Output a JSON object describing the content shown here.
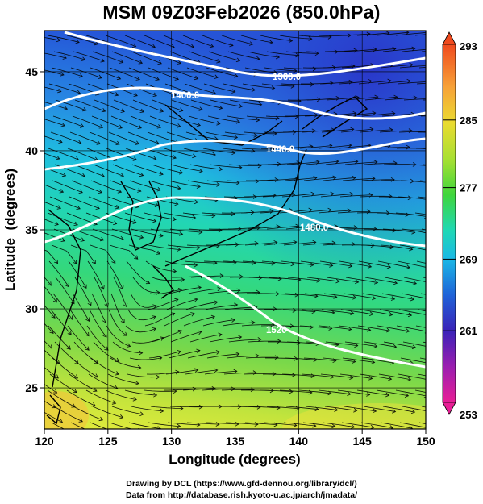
{
  "title": "MSM 09Z03Feb2026 (850.0hPa)",
  "x_axis": {
    "label": "Longitude (degrees)",
    "range": [
      120,
      150
    ],
    "ticks": [
      120,
      125,
      130,
      135,
      140,
      145,
      150
    ]
  },
  "y_axis": {
    "label": "Latitude  (degrees)",
    "range": [
      22.4,
      47.6
    ],
    "ticks": [
      25,
      30,
      35,
      40,
      45
    ]
  },
  "colorbar": {
    "range": [
      253,
      293
    ],
    "tick_labels": [
      "293",
      "285",
      "277",
      "269",
      "261",
      "253"
    ],
    "colors": [
      "#f04a1e",
      "#f7a238",
      "#d8e632",
      "#59d833",
      "#1fd8b5",
      "#1aa6e6",
      "#1f52d6",
      "#3a1fb8",
      "#b41ea8",
      "#e81e96"
    ]
  },
  "contours": {
    "unit": "geopotential height",
    "labels": [
      "1360.0",
      "1400.0",
      "1440.0",
      "1480.0",
      "1520"
    ]
  },
  "streamlines": true,
  "credits": {
    "line1": "Drawing by DCL (https://www.gfd-dennou.org/library/dcl/)",
    "line2": "Data from http://database.rish.kyoto-u.ac.jp/arch/jmadata/"
  }
}
